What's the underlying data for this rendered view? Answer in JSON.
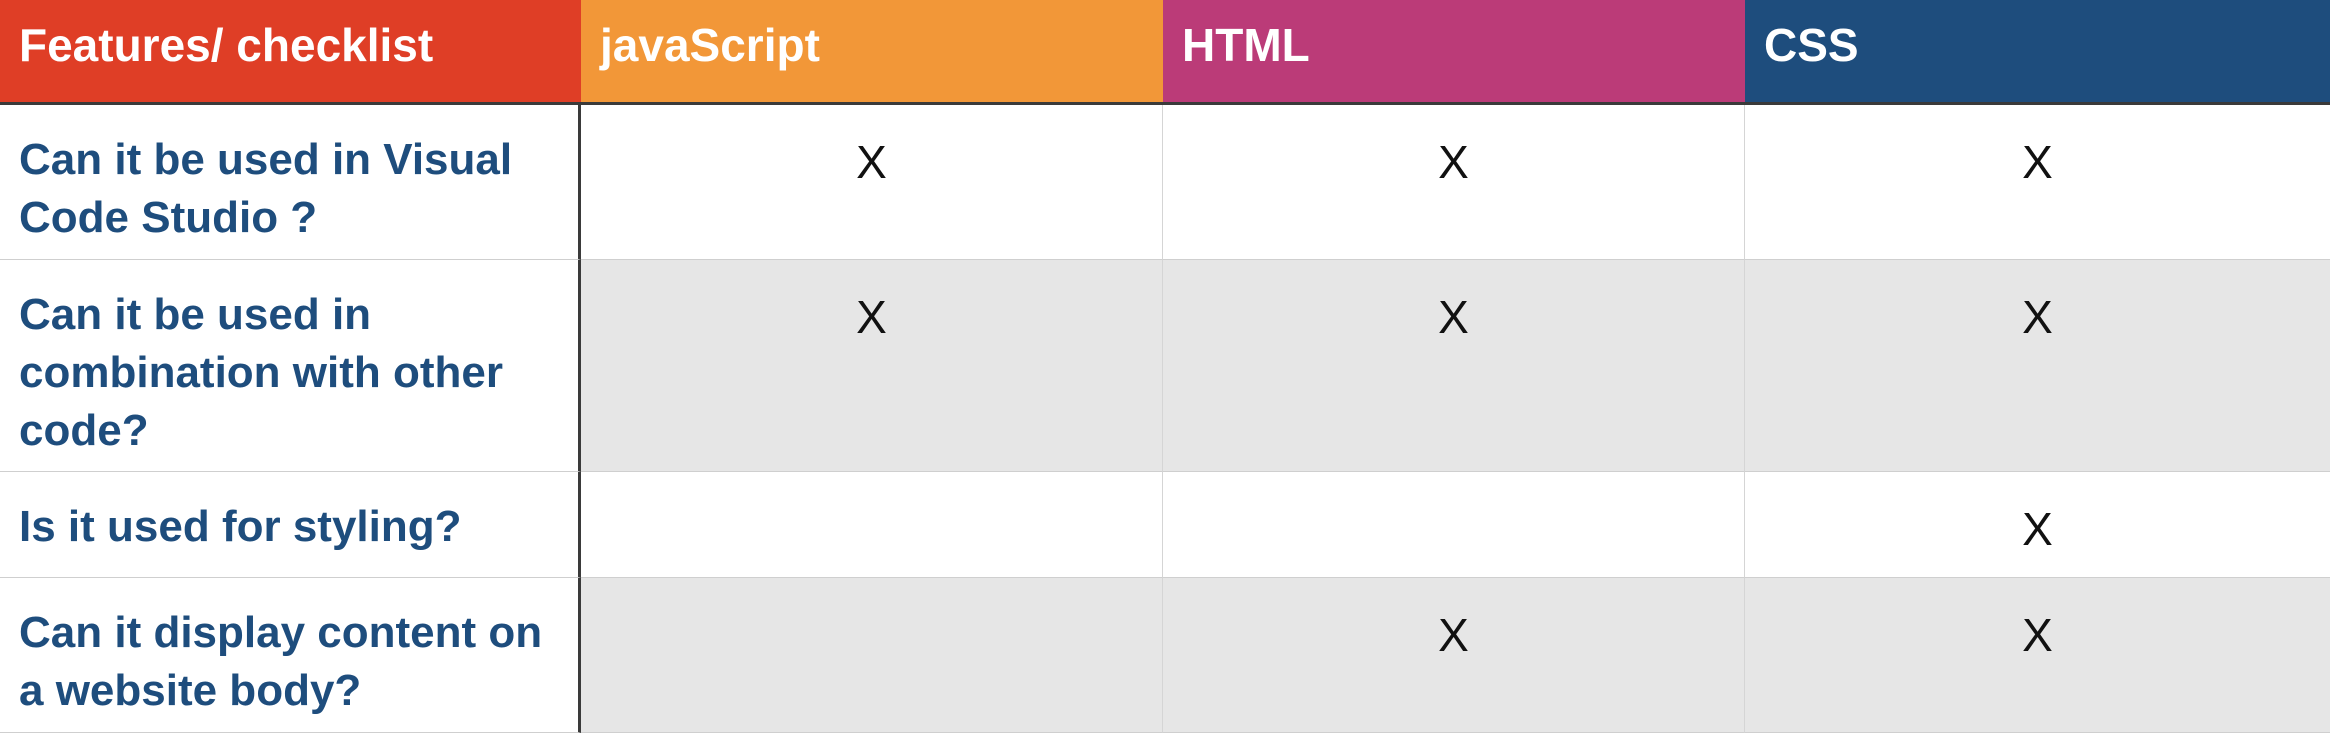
{
  "header": {
    "columns": [
      {
        "label": "Features/ checklist",
        "color": "#df3e26"
      },
      {
        "label": "javaScript",
        "color": "#f29738"
      },
      {
        "label": "HTML",
        "color": "#bb3b78"
      },
      {
        "label": "CSS",
        "color": "#1e4d7d"
      }
    ]
  },
  "rows": [
    {
      "feature": "Can it be used in Visual Code Studio ?",
      "javascript": "X",
      "html": "X",
      "css": "X"
    },
    {
      "feature": "Can it be used in combination with other code?",
      "javascript": "X",
      "html": "X",
      "css": "X"
    },
    {
      "feature": "Is it used for styling?",
      "javascript": "",
      "html": "",
      "css": "X"
    },
    {
      "feature": "Can it display content on a website body?",
      "javascript": "",
      "html": "X",
      "css": "X"
    }
  ],
  "colors": {
    "feature_text": "#1e4d7d",
    "alt_row_bg": "#e6e6e6"
  }
}
